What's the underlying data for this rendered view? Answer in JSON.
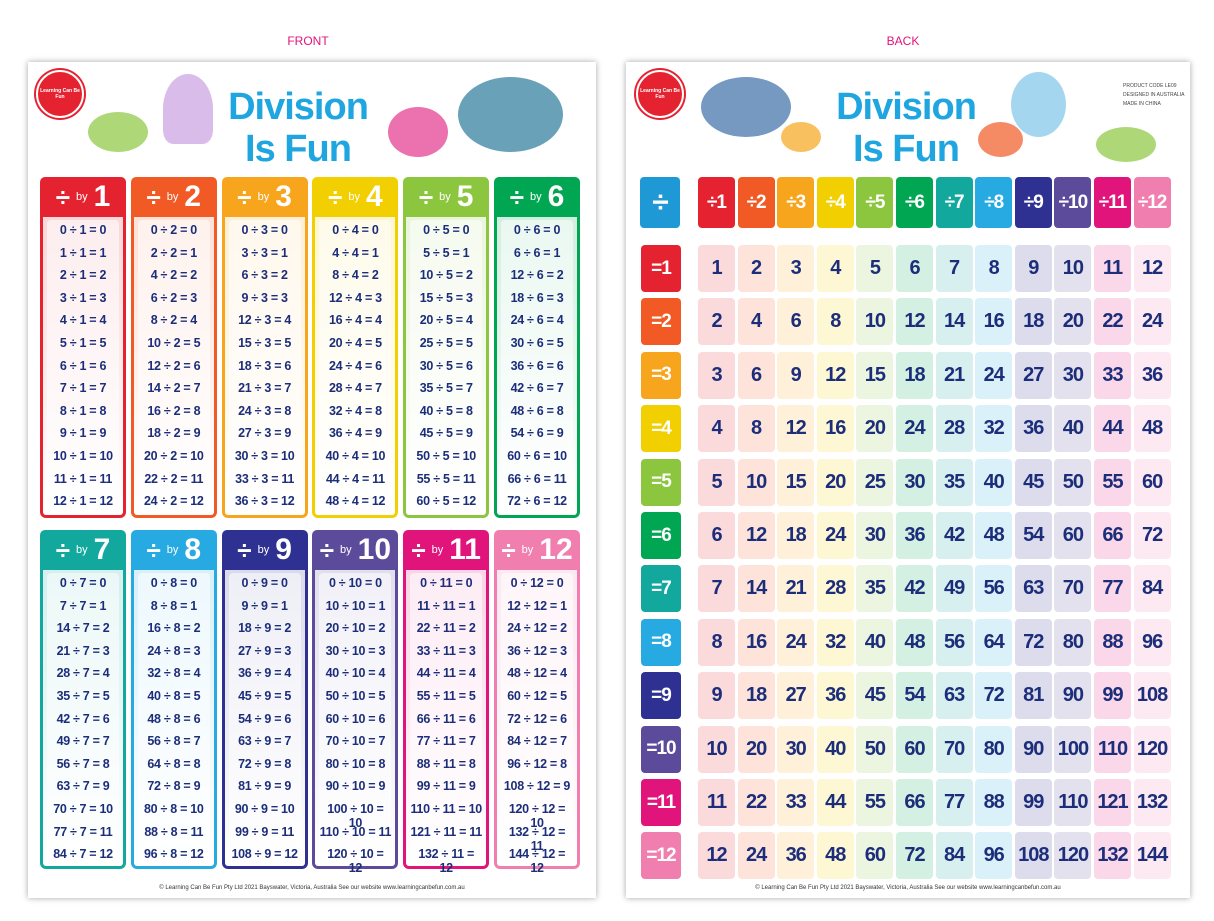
{
  "labels": {
    "front": "FRONT",
    "back": "BACK"
  },
  "front": {
    "title_line1": "Division",
    "title_line2": "Is Fun",
    "logo": "Learning Can Be Fun",
    "divide": "÷",
    "by": "by",
    "footer": "© Learning Can Be Fun Pty Ltd 2021 Bayswater, Victoria, Australia See our website www.learningcanbefun.com.au",
    "tables": [
      {
        "divisor": "1",
        "lines": [
          "0 ÷ 1 = 0",
          "1 ÷ 1 = 1",
          "2 ÷ 1 = 2",
          "3 ÷ 1 = 3",
          "4 ÷ 1 = 4",
          "5 ÷ 1 = 5",
          "6 ÷ 1 = 6",
          "7 ÷ 1 = 7",
          "8 ÷ 1 = 8",
          "9 ÷ 1 = 9",
          "10 ÷ 1 = 10",
          "11 ÷ 1 = 11",
          "12 ÷ 1 = 12"
        ]
      },
      {
        "divisor": "2",
        "lines": [
          "0 ÷ 2 = 0",
          "2 ÷ 2 = 1",
          "4 ÷ 2 = 2",
          "6 ÷ 2 = 3",
          "8 ÷ 2 = 4",
          "10 ÷ 2 = 5",
          "12 ÷ 2 = 6",
          "14 ÷ 2 = 7",
          "16 ÷ 2 = 8",
          "18 ÷ 2 = 9",
          "20 ÷ 2 = 10",
          "22 ÷ 2 = 11",
          "24 ÷ 2 = 12"
        ]
      },
      {
        "divisor": "3",
        "lines": [
          "0 ÷ 3 = 0",
          "3 ÷ 3 = 1",
          "6 ÷ 3 = 2",
          "9 ÷ 3 = 3",
          "12 ÷ 3 = 4",
          "15 ÷ 3 = 5",
          "18 ÷ 3 = 6",
          "21 ÷ 3 = 7",
          "24 ÷ 3 = 8",
          "27 ÷ 3 = 9",
          "30 ÷ 3 = 10",
          "33 ÷ 3 = 11",
          "36 ÷ 3 = 12"
        ]
      },
      {
        "divisor": "4",
        "lines": [
          "0 ÷ 4 = 0",
          "4 ÷ 4 = 1",
          "8 ÷ 4 = 2",
          "12 ÷ 4 = 3",
          "16 ÷ 4 = 4",
          "20 ÷ 4 = 5",
          "24 ÷ 4 = 6",
          "28 ÷ 4 = 7",
          "32 ÷ 4 = 8",
          "36 ÷ 4 = 9",
          "40 ÷ 4 = 10",
          "44 ÷ 4 = 11",
          "48 ÷ 4 = 12"
        ]
      },
      {
        "divisor": "5",
        "lines": [
          "0 ÷ 5 = 0",
          "5 ÷ 5 = 1",
          "10 ÷ 5 = 2",
          "15 ÷ 5 = 3",
          "20 ÷ 5 = 4",
          "25 ÷ 5 = 5",
          "30 ÷ 5 = 6",
          "35 ÷ 5 = 7",
          "40 ÷ 5 = 8",
          "45 ÷ 5 = 9",
          "50 ÷ 5 = 10",
          "55 ÷ 5 = 11",
          "60 ÷ 5 = 12"
        ]
      },
      {
        "divisor": "6",
        "lines": [
          "0 ÷ 6 = 0",
          "6 ÷ 6 = 1",
          "12 ÷ 6 = 2",
          "18 ÷ 6 = 3",
          "24 ÷ 6 = 4",
          "30 ÷ 6 = 5",
          "36 ÷ 6 = 6",
          "42 ÷ 6 = 7",
          "48 ÷ 6 = 8",
          "54 ÷ 6 = 9",
          "60 ÷ 6 = 10",
          "66 ÷ 6 = 11",
          "72 ÷ 6 = 12"
        ]
      },
      {
        "divisor": "7",
        "lines": [
          "0 ÷ 7 = 0",
          "7 ÷ 7 = 1",
          "14 ÷ 7 = 2",
          "21 ÷ 7 = 3",
          "28 ÷ 7 = 4",
          "35 ÷ 7 = 5",
          "42 ÷ 7 = 6",
          "49 ÷ 7 = 7",
          "56 ÷ 7 = 8",
          "63 ÷ 7 = 9",
          "70 ÷ 7 = 10",
          "77 ÷ 7 = 11",
          "84 ÷ 7 = 12"
        ]
      },
      {
        "divisor": "8",
        "lines": [
          "0 ÷ 8 = 0",
          "8 ÷ 8 = 1",
          "16 ÷ 8 = 2",
          "24 ÷ 8 = 3",
          "32 ÷ 8 = 4",
          "40 ÷ 8 = 5",
          "48 ÷ 8 = 6",
          "56 ÷ 8 = 7",
          "64 ÷ 8 = 8",
          "72 ÷ 8 = 9",
          "80 ÷ 8 = 10",
          "88 ÷ 8 = 11",
          "96 ÷ 8 = 12"
        ]
      },
      {
        "divisor": "9",
        "lines": [
          "0 ÷ 9 = 0",
          "9 ÷ 9 = 1",
          "18 ÷ 9 = 2",
          "27 ÷ 9 = 3",
          "36 ÷ 9 = 4",
          "45 ÷ 9 = 5",
          "54 ÷ 9 = 6",
          "63 ÷ 9 = 7",
          "72 ÷ 9 = 8",
          "81 ÷ 9 = 9",
          "90 ÷ 9 = 10",
          "99 ÷ 9 = 11",
          "108 ÷ 9 = 12"
        ]
      },
      {
        "divisor": "10",
        "lines": [
          "0 ÷ 10 = 0",
          "10 ÷ 10 = 1",
          "20 ÷ 10 = 2",
          "30 ÷ 10 = 3",
          "40 ÷ 10 = 4",
          "50 ÷ 10 = 5",
          "60 ÷ 10 = 6",
          "70 ÷ 10 = 7",
          "80 ÷ 10 = 8",
          "90 ÷ 10 = 9",
          "100 ÷ 10 = 10",
          "110 ÷ 10 = 11",
          "120 ÷ 10 = 12"
        ]
      },
      {
        "divisor": "11",
        "lines": [
          "0 ÷ 11 = 0",
          "11 ÷ 11 = 1",
          "22 ÷ 11 = 2",
          "33 ÷ 11 = 3",
          "44 ÷ 11 = 4",
          "55 ÷ 11 = 5",
          "66 ÷ 11 = 6",
          "77 ÷ 11 = 7",
          "88 ÷ 11 = 8",
          "99 ÷ 11 = 9",
          "110 ÷ 11 = 10",
          "121 ÷ 11 = 11",
          "132 ÷ 11 = 12"
        ]
      },
      {
        "divisor": "12",
        "lines": [
          "0 ÷ 12 = 0",
          "12 ÷ 12 = 1",
          "24 ÷ 12 = 2",
          "36 ÷ 12 = 3",
          "48 ÷ 12 = 4",
          "60 ÷ 12 = 5",
          "72 ÷ 12 = 6",
          "84 ÷ 12 = 7",
          "96 ÷ 12 = 8",
          "108 ÷ 12 = 9",
          "120 ÷ 12 = 10",
          "132 ÷ 12 = 11",
          "144 ÷ 12 = 12"
        ]
      }
    ]
  },
  "back": {
    "title_line1": "Division",
    "title_line2": "Is Fun",
    "logo": "Learning Can Be Fun",
    "corner": "÷",
    "product_info": [
      "PRODUCT CODE LE09",
      "DESIGNED IN AUSTRALIA",
      "MADE IN CHINA"
    ],
    "footer": "© Learning Can Be Fun Pty Ltd 2021 Bayswater, Victoria, Australia See our website www.learningcanbefun.com.au",
    "columns": [
      "÷1",
      "÷2",
      "÷3",
      "÷4",
      "÷5",
      "÷6",
      "÷7",
      "÷8",
      "÷9",
      "÷10",
      "÷11",
      "÷12"
    ],
    "rows": [
      {
        "label": "=1",
        "values": [
          1,
          2,
          3,
          4,
          5,
          6,
          7,
          8,
          9,
          10,
          11,
          12
        ]
      },
      {
        "label": "=2",
        "values": [
          2,
          4,
          6,
          8,
          10,
          12,
          14,
          16,
          18,
          20,
          22,
          24
        ]
      },
      {
        "label": "=3",
        "values": [
          3,
          6,
          9,
          12,
          15,
          18,
          21,
          24,
          27,
          30,
          33,
          36
        ]
      },
      {
        "label": "=4",
        "values": [
          4,
          8,
          12,
          16,
          20,
          24,
          28,
          32,
          36,
          40,
          44,
          48
        ]
      },
      {
        "label": "=5",
        "values": [
          5,
          10,
          15,
          20,
          25,
          30,
          35,
          40,
          45,
          50,
          55,
          60
        ]
      },
      {
        "label": "=6",
        "values": [
          6,
          12,
          18,
          24,
          30,
          36,
          42,
          48,
          54,
          60,
          66,
          72
        ]
      },
      {
        "label": "=7",
        "values": [
          7,
          14,
          21,
          28,
          35,
          42,
          49,
          56,
          63,
          70,
          77,
          84
        ]
      },
      {
        "label": "=8",
        "values": [
          8,
          16,
          24,
          32,
          40,
          48,
          56,
          64,
          72,
          80,
          88,
          96
        ]
      },
      {
        "label": "=9",
        "values": [
          9,
          18,
          27,
          36,
          45,
          54,
          63,
          72,
          81,
          90,
          99,
          108
        ]
      },
      {
        "label": "=10",
        "values": [
          10,
          20,
          30,
          40,
          50,
          60,
          70,
          80,
          90,
          100,
          110,
          120
        ]
      },
      {
        "label": "=11",
        "values": [
          11,
          22,
          33,
          44,
          55,
          66,
          77,
          88,
          99,
          110,
          121,
          132
        ]
      },
      {
        "label": "=12",
        "values": [
          12,
          24,
          36,
          48,
          60,
          72,
          84,
          96,
          108,
          120,
          132,
          144
        ]
      }
    ]
  },
  "colors": [
    "#e52330",
    "#f15a24",
    "#f7a51c",
    "#f2cf00",
    "#8cc63f",
    "#00a651",
    "#13a89e",
    "#27aae1",
    "#2e3192",
    "#5c4b9b",
    "#e0147a",
    "#f07fb0"
  ]
}
